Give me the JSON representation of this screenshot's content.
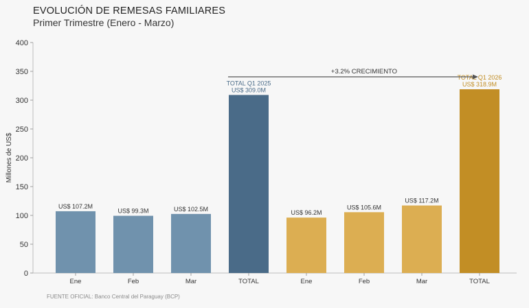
{
  "chart_data": {
    "type": "bar",
    "title": "EVOLUCIÓN DE REMESAS FAMILIARES",
    "subtitle": "Primer Trimestre (Enero - Marzo)",
    "ylabel": "Millones de US$",
    "xlabel": "",
    "ylim": [
      0,
      400
    ],
    "yticks": [
      0,
      50,
      100,
      150,
      200,
      250,
      300,
      350,
      400
    ],
    "grid": false,
    "categories": [
      "Ene",
      "Feb",
      "Mar",
      "TOTAL",
      "Ene",
      "Feb",
      "Mar",
      "TOTAL"
    ],
    "values": [
      107.2,
      99.3,
      102.5,
      309.0,
      96.2,
      105.6,
      117.2,
      318.9
    ],
    "bar_colors": [
      "#7092ad",
      "#7092ad",
      "#7092ad",
      "#4a6b88",
      "#dcae52",
      "#dcae52",
      "#dcae52",
      "#c28e25"
    ],
    "label_colors": [
      "#333333",
      "#333333",
      "#333333",
      "#4a6b88",
      "#333333",
      "#333333",
      "#333333",
      "#c28e25"
    ],
    "data_labels": [
      [
        "US$ 107.2M"
      ],
      [
        "US$ 99.3M"
      ],
      [
        "US$ 102.5M"
      ],
      [
        "TOTAL Q1 2025",
        "US$ 309.0M"
      ],
      [
        "US$ 96.2M"
      ],
      [
        "US$ 105.6M"
      ],
      [
        "US$ 117.2M"
      ],
      [
        "TOTAL Q1 2026",
        "US$ 318.9M"
      ]
    ],
    "annotation": {
      "text": "+3.2% CRECIMIENTO",
      "from_index": 3,
      "to_index": 7
    }
  },
  "source": "FUENTE OFICIAL: Banco Central del Paraguay (BCP)"
}
